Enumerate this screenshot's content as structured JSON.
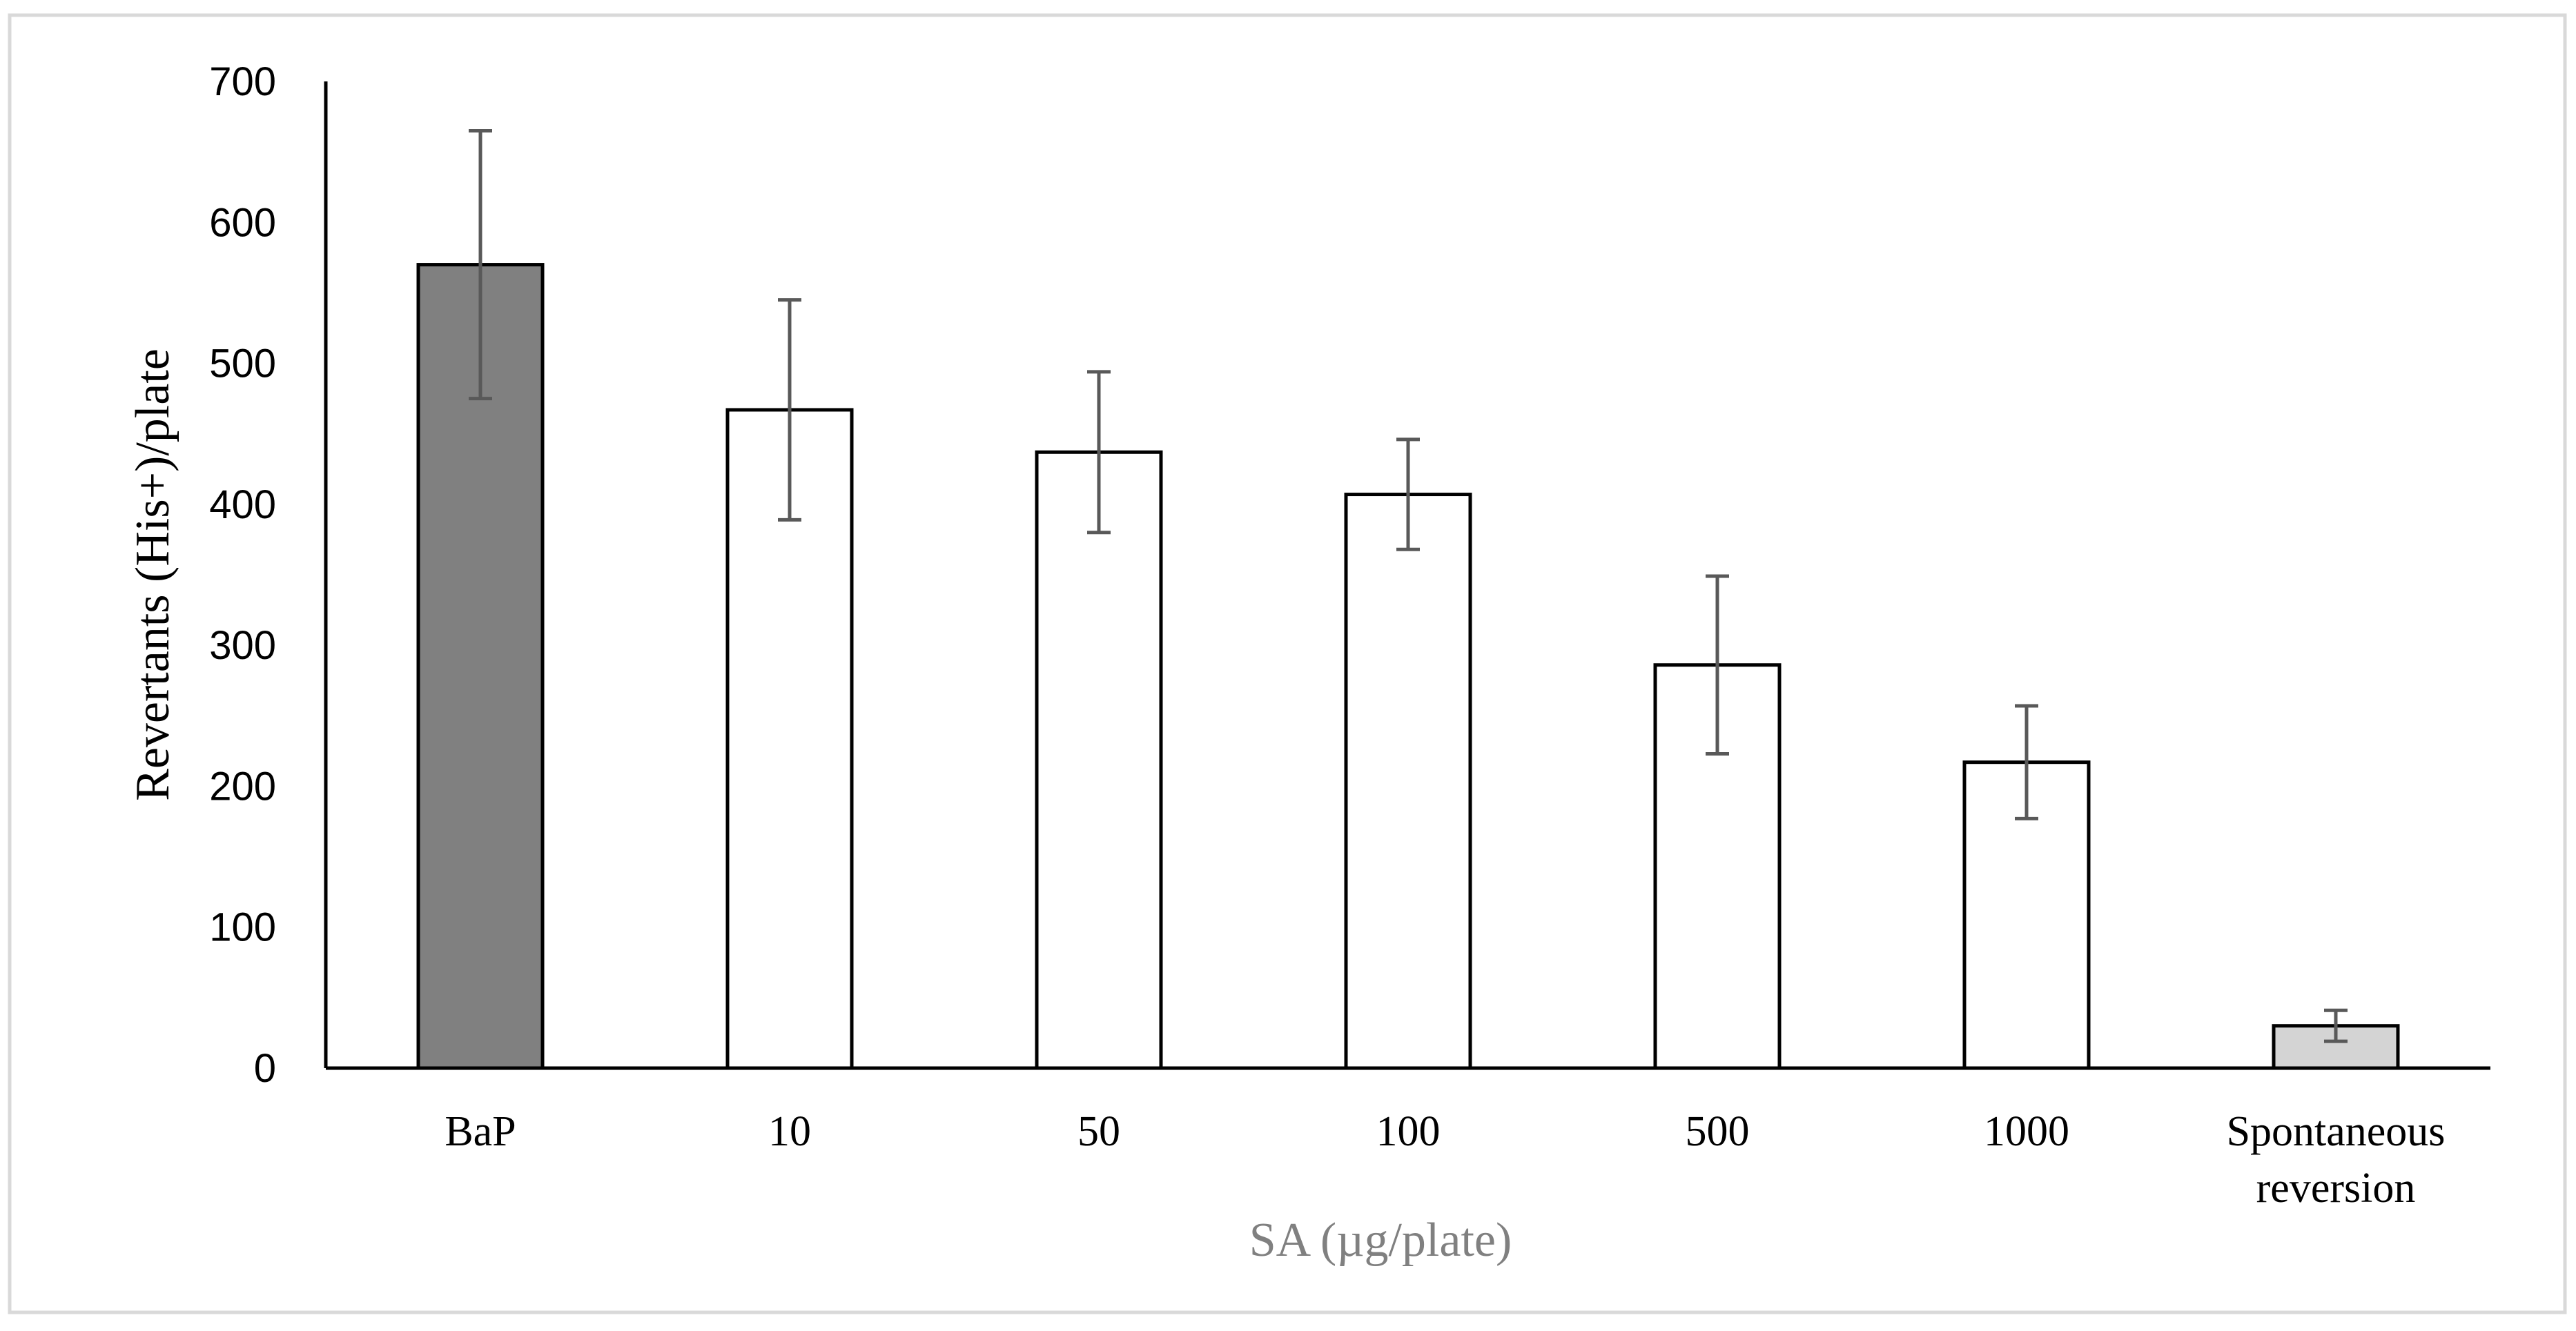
{
  "chart_data": {
    "type": "bar",
    "xlabel": "SA (µg/plate)",
    "ylabel": "Revertants (His+)/plate",
    "ylim": [
      0,
      700
    ],
    "yticks": [
      0,
      100,
      200,
      300,
      400,
      500,
      600,
      700
    ],
    "grid": false,
    "legend": "none",
    "categories": [
      [
        "BaP"
      ],
      [
        "10"
      ],
      [
        "50"
      ],
      [
        "100"
      ],
      [
        "500"
      ],
      [
        "1000"
      ],
      [
        "Spontaneous",
        "reversion"
      ]
    ],
    "values": [
      570,
      467,
      437,
      407,
      286,
      217,
      30
    ],
    "errors": [
      95,
      78,
      57,
      39,
      63,
      40,
      11
    ],
    "bar_colors": [
      "#808080",
      "#ffffff",
      "#ffffff",
      "#ffffff",
      "#ffffff",
      "#ffffff",
      "#d4d4d4"
    ],
    "bar_edge_color": "#000000",
    "error_color": "#595959",
    "frame_color": "#d9d9d9"
  }
}
